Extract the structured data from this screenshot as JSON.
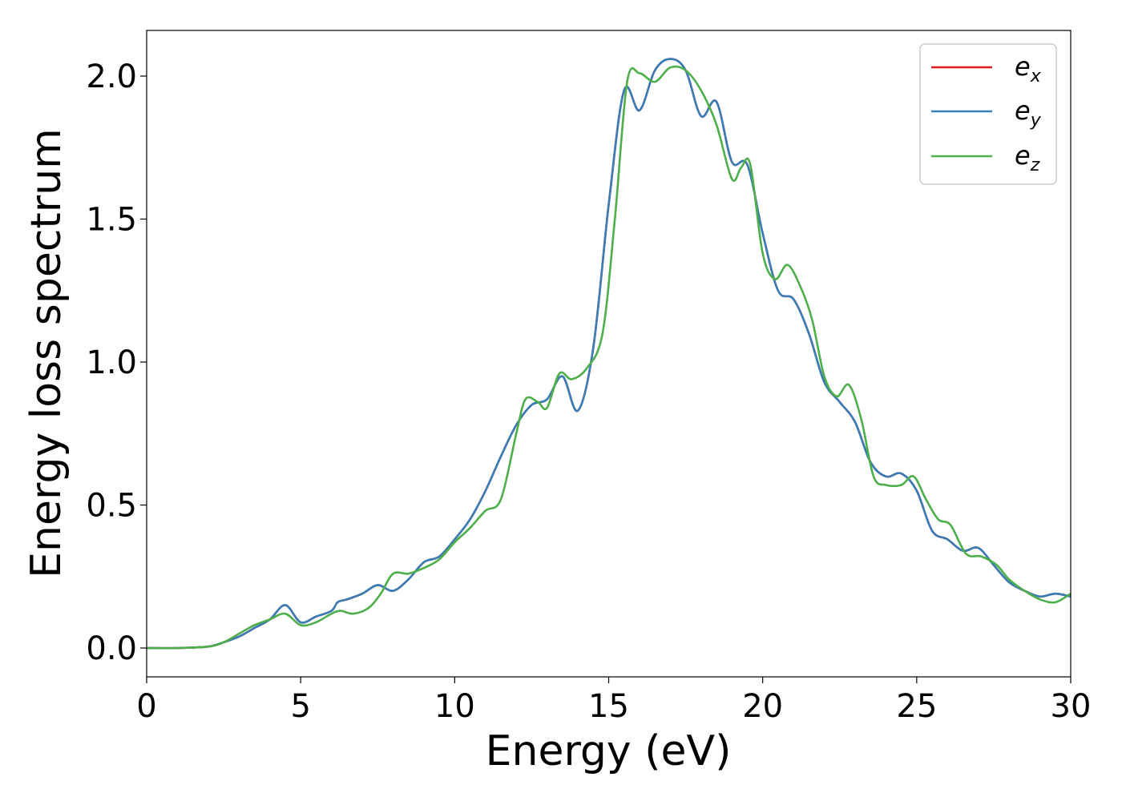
{
  "chart_data": {
    "type": "line",
    "title": "",
    "xlabel": "Energy (eV)",
    "ylabel": "Energy loss spectrum",
    "xlim": [
      0,
      30
    ],
    "ylim": [
      -0.1,
      2.16
    ],
    "xticks": [
      0,
      5,
      10,
      15,
      20,
      25,
      30
    ],
    "xtick_labels": [
      "0",
      "5",
      "10",
      "15",
      "20",
      "25",
      "30"
    ],
    "yticks": [
      0.0,
      0.5,
      1.0,
      1.5,
      2.0
    ],
    "ytick_labels": [
      "0.0",
      "0.5",
      "1.0",
      "1.5",
      "2.0"
    ],
    "grid": false,
    "legend_position": "top-right",
    "legend": [
      {
        "base": "e",
        "sub": "x"
      },
      {
        "base": "e",
        "sub": "y"
      },
      {
        "base": "e",
        "sub": "z"
      }
    ],
    "series": [
      {
        "key": "ex",
        "color": "#e41a1c",
        "x": [
          0,
          1,
          2,
          2.5,
          3,
          3.5,
          4,
          4.5,
          5,
          5.5,
          6,
          6.2,
          6.5,
          7,
          7.5,
          8,
          8.5,
          9,
          9.5,
          10,
          10.5,
          11,
          11.5,
          12,
          12.5,
          13,
          13.5,
          14,
          14.5,
          15,
          15.5,
          16,
          16.5,
          17,
          17.5,
          18,
          18.5,
          19,
          19.5,
          20,
          20.5,
          21,
          21.5,
          22,
          22.5,
          23,
          23.5,
          24,
          24.5,
          25,
          25.5,
          26,
          26.5,
          27,
          27.5,
          28,
          28.5,
          29,
          29.5,
          30
        ],
        "y": [
          0,
          0,
          0.005,
          0.02,
          0.04,
          0.07,
          0.1,
          0.15,
          0.09,
          0.11,
          0.13,
          0.16,
          0.17,
          0.19,
          0.22,
          0.2,
          0.24,
          0.3,
          0.32,
          0.38,
          0.45,
          0.55,
          0.67,
          0.78,
          0.85,
          0.87,
          0.95,
          0.83,
          1.05,
          1.55,
          1.95,
          1.88,
          2.02,
          2.06,
          2.02,
          1.86,
          1.91,
          1.7,
          1.69,
          1.45,
          1.25,
          1.22,
          1.1,
          0.93,
          0.86,
          0.79,
          0.65,
          0.6,
          0.61,
          0.55,
          0.41,
          0.38,
          0.34,
          0.35,
          0.29,
          0.23,
          0.2,
          0.18,
          0.19,
          0.18
        ]
      },
      {
        "key": "ey",
        "color": "#377eb8",
        "x": [
          0,
          1,
          2,
          2.5,
          3,
          3.5,
          4,
          4.5,
          5,
          5.5,
          6,
          6.2,
          6.5,
          7,
          7.5,
          8,
          8.5,
          9,
          9.5,
          10,
          10.5,
          11,
          11.5,
          12,
          12.5,
          13,
          13.5,
          14,
          14.5,
          15,
          15.5,
          16,
          16.5,
          17,
          17.5,
          18,
          18.5,
          19,
          19.5,
          20,
          20.5,
          21,
          21.5,
          22,
          22.5,
          23,
          23.5,
          24,
          24.5,
          25,
          25.5,
          26,
          26.5,
          27,
          27.5,
          28,
          28.5,
          29,
          29.5,
          30
        ],
        "y": [
          0,
          0,
          0.005,
          0.02,
          0.04,
          0.07,
          0.1,
          0.15,
          0.09,
          0.11,
          0.13,
          0.16,
          0.17,
          0.19,
          0.22,
          0.2,
          0.24,
          0.3,
          0.32,
          0.38,
          0.45,
          0.55,
          0.67,
          0.78,
          0.85,
          0.87,
          0.95,
          0.83,
          1.05,
          1.55,
          1.95,
          1.88,
          2.02,
          2.06,
          2.02,
          1.86,
          1.91,
          1.7,
          1.69,
          1.45,
          1.25,
          1.22,
          1.1,
          0.93,
          0.86,
          0.79,
          0.65,
          0.6,
          0.61,
          0.55,
          0.41,
          0.38,
          0.34,
          0.35,
          0.29,
          0.23,
          0.2,
          0.18,
          0.19,
          0.18
        ]
      },
      {
        "key": "ez",
        "color": "#4daf4a",
        "x": [
          0,
          1,
          2,
          2.5,
          3,
          3.5,
          4,
          4.5,
          5,
          5.5,
          6,
          6.3,
          6.7,
          7.2,
          7.6,
          8,
          8.5,
          9,
          9.5,
          10,
          10.5,
          11,
          11.5,
          12,
          12.3,
          12.7,
          13,
          13.4,
          13.8,
          14.3,
          14.8,
          15.2,
          15.6,
          16,
          16.5,
          17,
          17.5,
          18,
          18.5,
          19,
          19.3,
          19.6,
          20,
          20.4,
          20.8,
          21.2,
          21.6,
          22,
          22.4,
          22.8,
          23.2,
          23.6,
          24,
          24.5,
          24.9,
          25.3,
          25.7,
          26.1,
          26.6,
          27.1,
          27.6,
          28,
          28.5,
          29,
          29.5,
          30
        ],
        "y": [
          0,
          0,
          0.005,
          0.02,
          0.05,
          0.08,
          0.1,
          0.12,
          0.08,
          0.09,
          0.12,
          0.13,
          0.12,
          0.14,
          0.19,
          0.26,
          0.26,
          0.28,
          0.31,
          0.37,
          0.42,
          0.48,
          0.52,
          0.75,
          0.87,
          0.86,
          0.84,
          0.96,
          0.94,
          0.98,
          1.1,
          1.5,
          1.98,
          2.01,
          1.98,
          2.03,
          2.02,
          1.95,
          1.83,
          1.64,
          1.68,
          1.69,
          1.38,
          1.29,
          1.34,
          1.27,
          1.15,
          0.95,
          0.88,
          0.92,
          0.8,
          0.6,
          0.57,
          0.57,
          0.6,
          0.52,
          0.45,
          0.43,
          0.33,
          0.32,
          0.29,
          0.24,
          0.2,
          0.17,
          0.16,
          0.19
        ]
      }
    ]
  }
}
